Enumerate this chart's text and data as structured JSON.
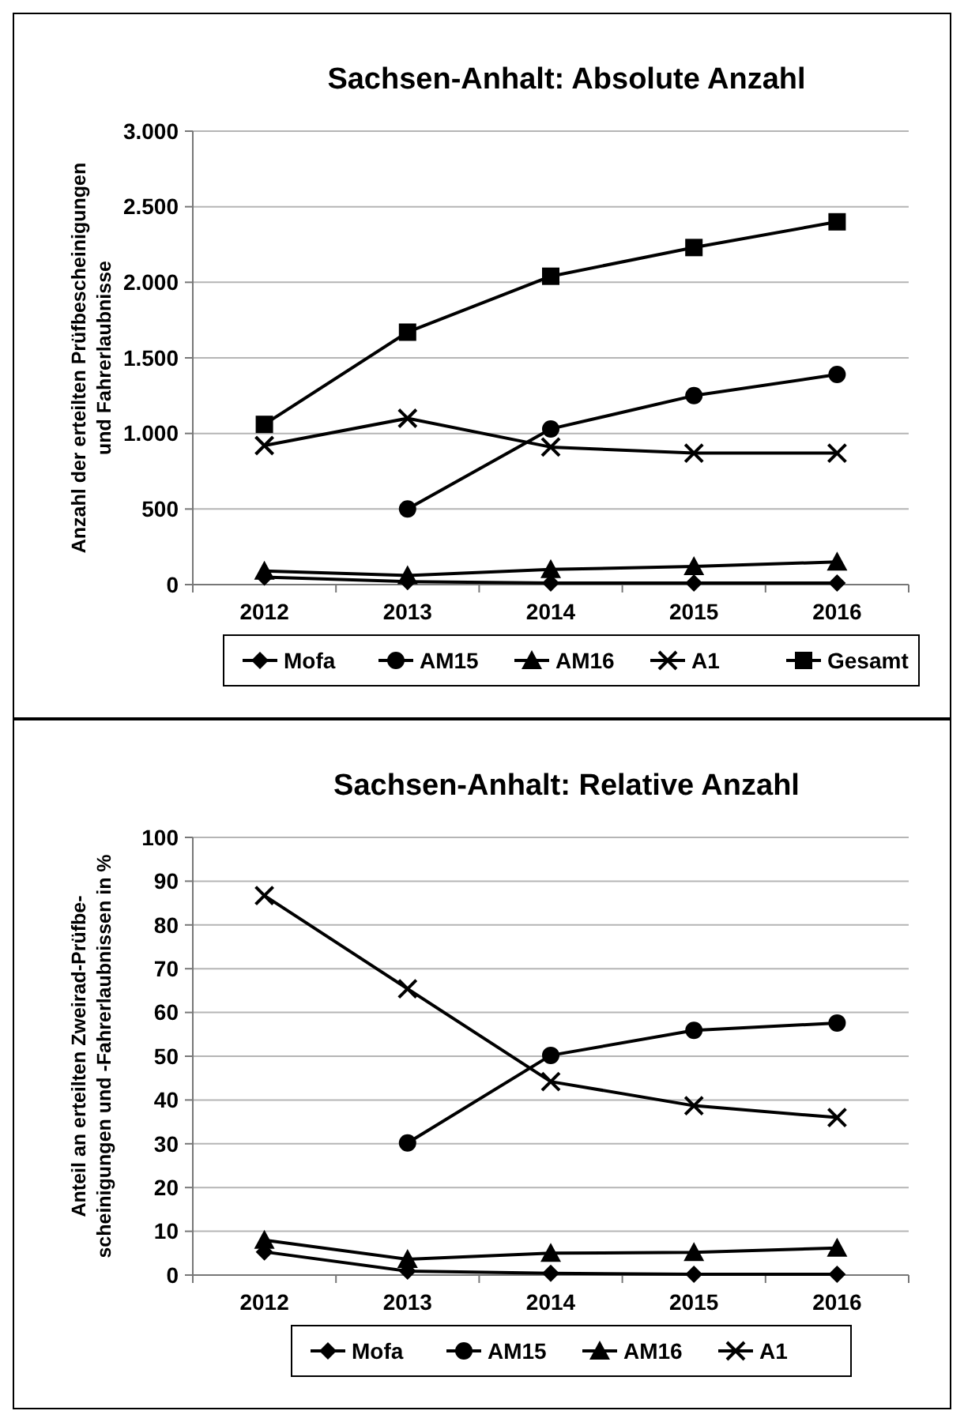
{
  "chart_data": [
    {
      "type": "line",
      "title": "Sachsen-Anhalt: Absolute Anzahl",
      "ylabel": "Anzahl der erteilten Prüfbescheinigungen\nund Fahrerlaubnisse",
      "categories": [
        "2012",
        "2013",
        "2014",
        "2015",
        "2016"
      ],
      "ylim": [
        0,
        3000
      ],
      "yticks": [
        0,
        500,
        {
          "value": 1000,
          "label": "1.000"
        },
        {
          "value": 1500,
          "label": "1.500"
        },
        {
          "value": 2000,
          "label": "2.000"
        },
        {
          "value": 2500,
          "label": "2.500"
        },
        {
          "value": 3000,
          "label": "3.000"
        }
      ],
      "grid": "y",
      "legend": "bottom",
      "series": [
        {
          "name": "Mofa",
          "color": "#000000",
          "marker": "diamond",
          "values": [
            50,
            20,
            10,
            10,
            10
          ]
        },
        {
          "name": "AM15",
          "color": "#000000",
          "marker": "circle",
          "values": [
            null,
            500,
            1030,
            1250,
            1390
          ]
        },
        {
          "name": "AM16",
          "color": "#000000",
          "marker": "triangle",
          "values": [
            90,
            60,
            100,
            120,
            150
          ]
        },
        {
          "name": "A1",
          "color": "#000000",
          "marker": "cross",
          "values": [
            920,
            1100,
            910,
            870,
            870
          ]
        },
        {
          "name": "Gesamt",
          "color": "#000000",
          "marker": "square",
          "values": [
            1060,
            1670,
            2040,
            2230,
            2400
          ]
        }
      ]
    },
    {
      "type": "line",
      "title": "Sachsen-Anhalt: Relative Anzahl",
      "ylabel": "Anteil an erteilten Zweirad-Prüfbe-\nscheinigungen und  -Fahrerlaubnissen in %",
      "categories": [
        "2012",
        "2013",
        "2014",
        "2015",
        "2016"
      ],
      "ylim": [
        0,
        100
      ],
      "yticks": [
        0,
        10,
        20,
        30,
        40,
        50,
        60,
        70,
        80,
        90,
        100
      ],
      "grid": "y",
      "legend": "bottom",
      "series": [
        {
          "name": "Mofa",
          "color": "#000000",
          "marker": "diamond",
          "values": [
            5.3,
            0.9,
            0.4,
            0.2,
            0.2
          ]
        },
        {
          "name": "AM15",
          "color": "#000000",
          "marker": "circle",
          "values": [
            null,
            30.2,
            50.2,
            55.9,
            57.6
          ]
        },
        {
          "name": "AM16",
          "color": "#000000",
          "marker": "triangle",
          "values": [
            8,
            3.6,
            5,
            5.2,
            6.2
          ]
        },
        {
          "name": "A1",
          "color": "#000000",
          "marker": "cross",
          "values": [
            86.7,
            65.4,
            44.2,
            38.7,
            36
          ]
        }
      ]
    }
  ]
}
